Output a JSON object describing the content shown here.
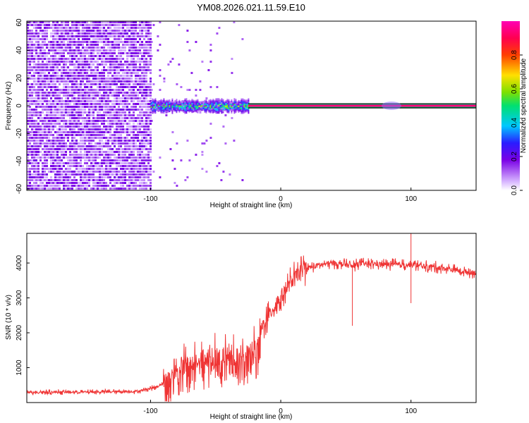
{
  "chart_data": [
    {
      "type": "heatmap",
      "title": "YM08.2026.021.11.59.E10",
      "xlabel": "Height of straight line (km)",
      "ylabel": "Frequency (Hz)",
      "xlim": [
        -195,
        150
      ],
      "ylim": [
        -61,
        61
      ],
      "xticks": [
        -100,
        0,
        100
      ],
      "xtick_labels": [
        "-100",
        "0",
        "100"
      ],
      "yticks": [
        -60,
        -40,
        -20,
        0,
        20,
        40,
        60
      ],
      "ytick_labels": [
        "-60",
        "-40",
        "-20",
        "0",
        "20",
        "40",
        "60"
      ],
      "colorbar": {
        "label": "Normalized spectral amplitude",
        "range": [
          0,
          1
        ],
        "ticks": [
          0.0,
          0.2,
          0.4,
          0.6,
          0.8
        ],
        "tick_labels": [
          "0.0",
          "0.2",
          "0.4",
          "0.6",
          "0.8"
        ]
      },
      "regions": [
        {
          "name": "noise",
          "x_range": [
            -195,
            -100
          ],
          "amplitude": 0.15
        },
        {
          "name": "transition",
          "x_range": [
            -100,
            -25
          ],
          "amplitude": 0.4
        },
        {
          "name": "carrier",
          "x_range": [
            -25,
            150
          ],
          "freq_hz": 0,
          "amplitude": 1.0
        }
      ]
    },
    {
      "type": "line",
      "xlabel": "Height of straight line (km)",
      "ylabel": "SNR (10 * v/v)",
      "xlim": [
        -195,
        150
      ],
      "ylim": [
        0,
        4850
      ],
      "xticks": [
        -100,
        0,
        100
      ],
      "xtick_labels": [
        "-100",
        "0",
        "100"
      ],
      "yticks": [
        1000,
        2000,
        3000,
        4000
      ],
      "ytick_labels": [
        "1000",
        "2000",
        "3000",
        "4000"
      ],
      "series": [
        {
          "name": "SNR",
          "color": "#ef3434",
          "x": [
            -195,
            -150,
            -110,
            -95,
            -85,
            -80,
            -75,
            -65,
            -50,
            -35,
            -25,
            -18,
            -15,
            -10,
            -5,
            0,
            5,
            10,
            15,
            20,
            25,
            30,
            40,
            50,
            55,
            60,
            70,
            80,
            90,
            100,
            110,
            120,
            130,
            140,
            150
          ],
          "values": [
            300,
            300,
            320,
            450,
            700,
            1150,
            1000,
            1250,
            1300,
            1350,
            1400,
            1600,
            2150,
            2450,
            2750,
            3000,
            3300,
            3550,
            3750,
            3850,
            3900,
            3950,
            4000,
            3950,
            3900,
            3980,
            3980,
            3960,
            3950,
            3950,
            3900,
            3880,
            3820,
            3760,
            3720
          ]
        }
      ]
    }
  ]
}
